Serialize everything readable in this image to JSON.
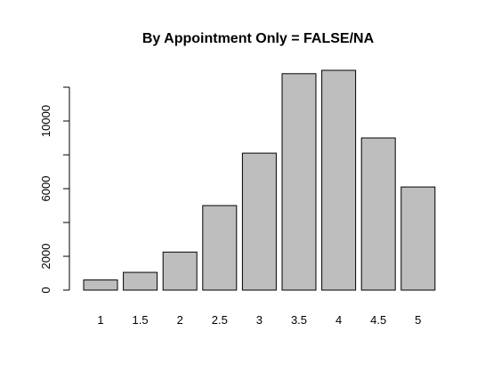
{
  "chart_data": {
    "type": "bar",
    "title": "By Appointment Only = FALSE/NA",
    "xlabel": "",
    "ylabel": "",
    "categories": [
      "1",
      "1.5",
      "2",
      "2.5",
      "3",
      "3.5",
      "4",
      "4.5",
      "5"
    ],
    "values": [
      600,
      1050,
      2250,
      5000,
      8100,
      12800,
      13000,
      9000,
      6100
    ],
    "ylim": [
      0,
      13000
    ],
    "yticks": [
      0,
      2000,
      4000,
      6000,
      8000,
      10000,
      12000
    ],
    "ytick_labels": [
      "0",
      "2000",
      "",
      "6000",
      "",
      "10000",
      ""
    ],
    "grid": false,
    "bar_color": "#bebebe",
    "border_color": "#000000"
  }
}
